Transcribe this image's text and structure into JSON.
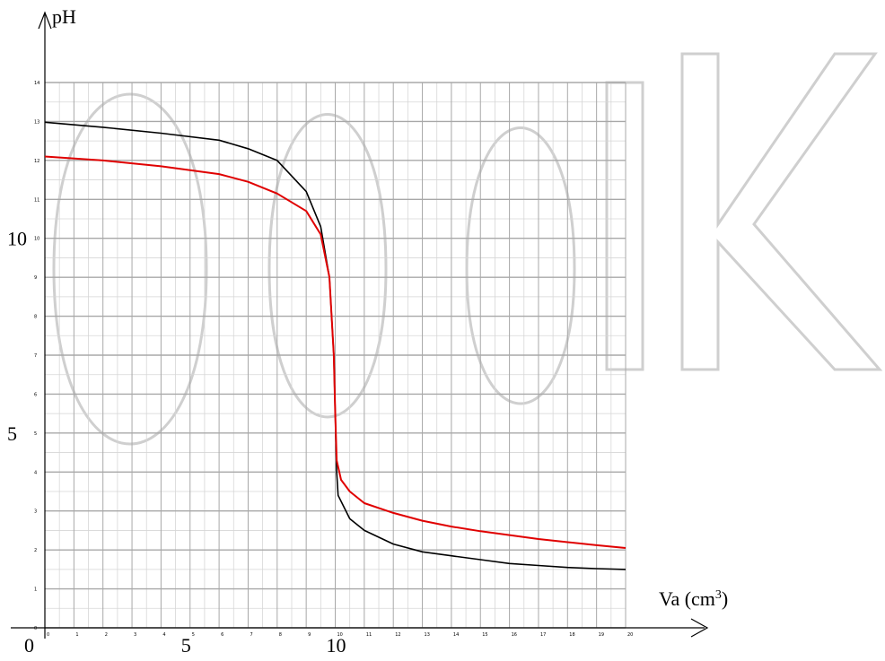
{
  "chart_data": {
    "type": "line",
    "title": "",
    "xlabel": "Va (cm",
    "xlabel_sup": "3",
    "xlabel_close": ")",
    "ylabel": "pH",
    "xlim": [
      0,
      20
    ],
    "ylim": [
      0,
      14
    ],
    "x_tick_labels": [
      {
        "x": 0,
        "label": "0"
      },
      {
        "x": 5,
        "label": "5"
      },
      {
        "x": 10,
        "label": "10"
      }
    ],
    "y_tick_labels": [
      {
        "y": 5,
        "label": "5"
      },
      {
        "y": 10,
        "label": "10"
      }
    ],
    "grid": true,
    "series": [
      {
        "color": "#000000",
        "points": [
          [
            0,
            12.98
          ],
          [
            2,
            12.85
          ],
          [
            4,
            12.7
          ],
          [
            6,
            12.52
          ],
          [
            7,
            12.3
          ],
          [
            8,
            12.0
          ],
          [
            9,
            11.2
          ],
          [
            9.5,
            10.3
          ],
          [
            9.8,
            9.0
          ],
          [
            9.95,
            7.0
          ],
          [
            10.0,
            5.5
          ],
          [
            10.05,
            4.0
          ],
          [
            10.1,
            3.4
          ],
          [
            10.5,
            2.8
          ],
          [
            11,
            2.5
          ],
          [
            12,
            2.15
          ],
          [
            13,
            1.95
          ],
          [
            14,
            1.85
          ],
          [
            15,
            1.75
          ],
          [
            16,
            1.65
          ],
          [
            17,
            1.6
          ],
          [
            18,
            1.55
          ],
          [
            19,
            1.52
          ],
          [
            20,
            1.5
          ]
        ]
      },
      {
        "color": "#e00000",
        "points": [
          [
            0,
            12.1
          ],
          [
            2,
            12.0
          ],
          [
            4,
            11.85
          ],
          [
            6,
            11.65
          ],
          [
            7,
            11.45
          ],
          [
            8,
            11.15
          ],
          [
            9,
            10.7
          ],
          [
            9.5,
            10.1
          ],
          [
            9.8,
            9.0
          ],
          [
            9.95,
            7.0
          ],
          [
            10.0,
            5.5
          ],
          [
            10.05,
            4.3
          ],
          [
            10.2,
            3.8
          ],
          [
            10.5,
            3.5
          ],
          [
            11,
            3.2
          ],
          [
            12,
            2.95
          ],
          [
            13,
            2.75
          ],
          [
            14,
            2.6
          ],
          [
            15,
            2.48
          ],
          [
            16,
            2.38
          ],
          [
            17,
            2.28
          ],
          [
            18,
            2.2
          ],
          [
            19,
            2.12
          ],
          [
            20,
            2.05
          ]
        ]
      }
    ]
  }
}
